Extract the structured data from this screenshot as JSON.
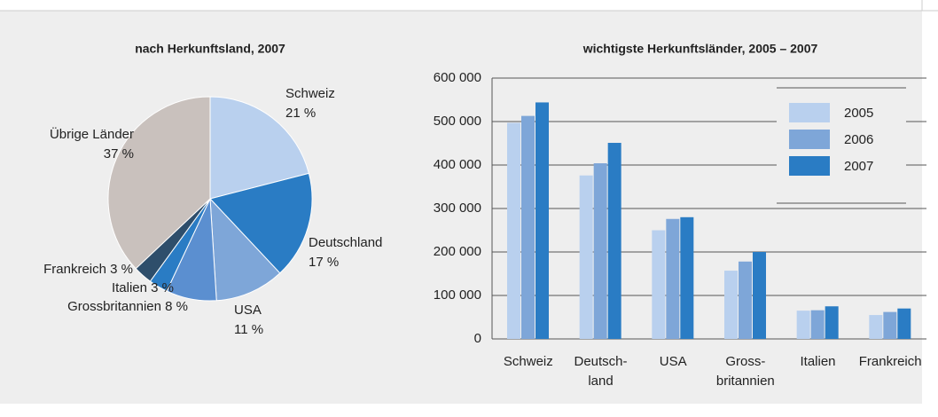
{
  "chart_data": [
    {
      "type": "pie",
      "title": "nach Herkunftsland, 2007",
      "categories": [
        "Schweiz",
        "Deutschland",
        "USA",
        "Grossbritannien",
        "Italien",
        "Frankreich",
        "Übrige Länder"
      ],
      "values": [
        21,
        17,
        11,
        8,
        3,
        3,
        37
      ],
      "value_labels": [
        "21 %",
        "17 %",
        "11 %",
        "8 %",
        "3 %",
        "3 %",
        "37 %"
      ],
      "colors": [
        "#b9d0ee",
        "#2a7cc4",
        "#7ea6d8",
        "#5b8fd0",
        "#2a7cc4",
        "#2e4e6b",
        "#c9c1bd"
      ]
    },
    {
      "type": "bar",
      "title": "wichtigste Herkunftsländer, 2005 – 2007",
      "categories": [
        [
          "Schweiz"
        ],
        [
          "Deutsch-",
          "land"
        ],
        [
          "USA"
        ],
        [
          "Gross-",
          "britannien"
        ],
        [
          "Italien"
        ],
        [
          "Frankreich"
        ]
      ],
      "series": [
        {
          "name": "2005",
          "color": "#b9d0ee",
          "values": [
            497000,
            376000,
            250000,
            157000,
            65000,
            55000
          ]
        },
        {
          "name": "2006",
          "color": "#7ea6d8",
          "values": [
            513000,
            404000,
            276000,
            178000,
            66000,
            62000
          ]
        },
        {
          "name": "2007",
          "color": "#2a7cc4",
          "values": [
            544000,
            451000,
            280000,
            200000,
            75000,
            70000
          ]
        }
      ],
      "ylim": [
        0,
        600000
      ],
      "yticks": [
        0,
        {
          "value": 100000,
          "label": "100 000"
        },
        {
          "value": 200000,
          "label": "200 000"
        },
        {
          "value": 300000,
          "label": "300 000"
        },
        {
          "value": 400000,
          "label": "400 000"
        },
        {
          "value": 500000,
          "label": "500 000"
        },
        {
          "value": 600000,
          "label": "600 000"
        }
      ],
      "grid": true,
      "legend": "top-right"
    }
  ]
}
